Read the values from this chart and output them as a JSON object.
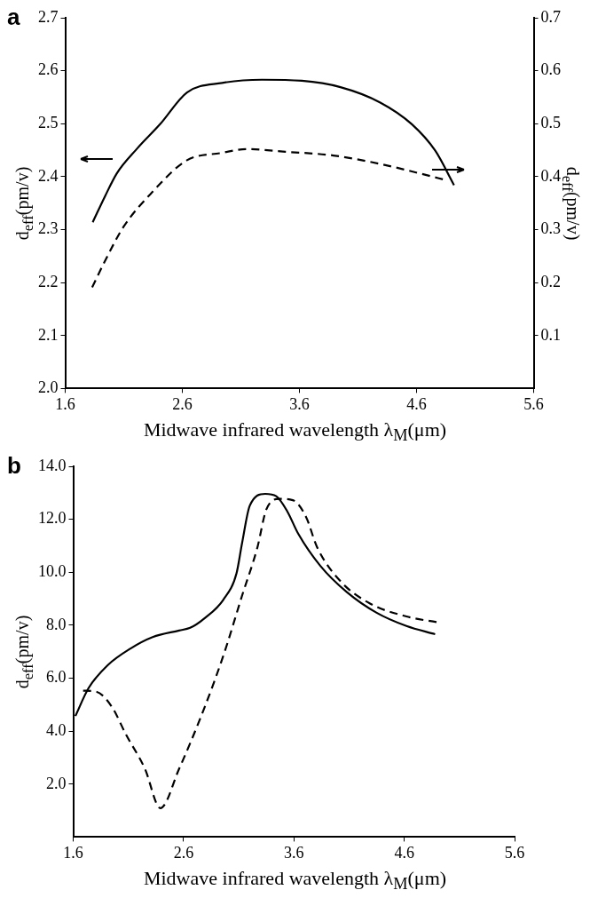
{
  "chart_data": [
    {
      "type": "line",
      "title": "a",
      "xlabel": "Midwave infrared wavelength λ$_{M}$(μm)",
      "ylabel": "d$_{eff}$(pm/v)",
      "y2label": "d$_{eff}$(pm/v)",
      "xlim": [
        1.6,
        5.6
      ],
      "xticks": [
        1.6,
        2.6,
        3.6,
        4.6,
        5.6
      ],
      "ylim": [
        2.0,
        2.7
      ],
      "yticks": [
        {
          "value": 2.0,
          "label": "2.0"
        },
        2.1,
        2.2,
        2.3,
        2.4,
        2.5,
        2.6,
        2.7
      ],
      "y2lim": [
        0,
        0.7
      ],
      "y2ticks": [
        0.1,
        0.2,
        0.3,
        0.4,
        0.5,
        0.6,
        0.7
      ],
      "grid": false,
      "legend": false,
      "marker": "none",
      "series": [
        {
          "color": "#000000",
          "line_style": "solid",
          "x": [
            1.835,
            1.94,
            2.04,
            2.21,
            2.41,
            2.64,
            2.94,
            3.28,
            3.62,
            3.95,
            4.29,
            4.56,
            4.76,
            4.92
          ],
          "values": [
            2.314,
            2.363,
            2.406,
            2.452,
            2.499,
            2.559,
            2.577,
            2.583,
            2.581,
            2.569,
            2.54,
            2.499,
            2.449,
            2.384
          ]
        },
        {
          "color": "#000000",
          "line_style": "dashed",
          "axis": "y2",
          "x": [
            1.83,
            1.94,
            2.1,
            2.34,
            2.64,
            2.94,
            3.15,
            3.48,
            3.89,
            4.29,
            4.63,
            4.86
          ],
          "values": [
            0.191,
            0.241,
            0.306,
            0.37,
            0.431,
            0.445,
            0.452,
            0.447,
            0.44,
            0.424,
            0.406,
            0.393
          ]
        }
      ]
    },
    {
      "type": "line",
      "title": "b",
      "xlabel": "Midwave infrared wavelength λ$_{M}$(μm)",
      "ylabel": "d$_{eff}$(pm/v)",
      "xlim": [
        1.6,
        5.6
      ],
      "xticks": [
        1.6,
        2.6,
        3.6,
        4.6,
        5.6
      ],
      "ylim": [
        0,
        14
      ],
      "yticks": [
        {
          "value": 2,
          "label": "2.0"
        },
        {
          "value": 4,
          "label": "4.0"
        },
        {
          "value": 6,
          "label": "6.0"
        },
        {
          "value": 8,
          "label": "8.0"
        },
        {
          "value": 10,
          "label": "10.0"
        },
        {
          "value": 12,
          "label": "12.0"
        },
        {
          "value": 14,
          "label": "14.0"
        }
      ],
      "grid": false,
      "legend": false,
      "marker": "none",
      "series": [
        {
          "color": "#000000",
          "line_style": "solid",
          "x": [
            1.62,
            1.74,
            1.91,
            2.12,
            2.32,
            2.56,
            2.66,
            2.79,
            2.96,
            3.08,
            3.13,
            3.2,
            3.34,
            3.44,
            3.54,
            3.64,
            3.84,
            4.08,
            4.35,
            4.62,
            4.88
          ],
          "values": [
            4.57,
            5.63,
            6.48,
            7.12,
            7.55,
            7.8,
            7.9,
            8.26,
            8.96,
            9.96,
            11.09,
            12.51,
            12.96,
            12.87,
            12.3,
            11.45,
            10.24,
            9.25,
            8.47,
            7.97,
            7.66
          ]
        },
        {
          "color": "#000000",
          "line_style": "dashed",
          "x": [
            1.69,
            1.81,
            1.95,
            2.08,
            2.25,
            2.39,
            2.56,
            2.76,
            2.96,
            3.13,
            3.27,
            3.35,
            3.47,
            3.59,
            3.71,
            3.81,
            4.02,
            4.29,
            4.62,
            4.9
          ],
          "values": [
            5.53,
            5.49,
            4.92,
            3.86,
            2.58,
            1.09,
            2.58,
            4.57,
            6.84,
            9.11,
            10.95,
            12.37,
            12.77,
            12.72,
            12.09,
            10.95,
            9.67,
            8.82,
            8.33,
            8.11
          ]
        }
      ]
    }
  ]
}
